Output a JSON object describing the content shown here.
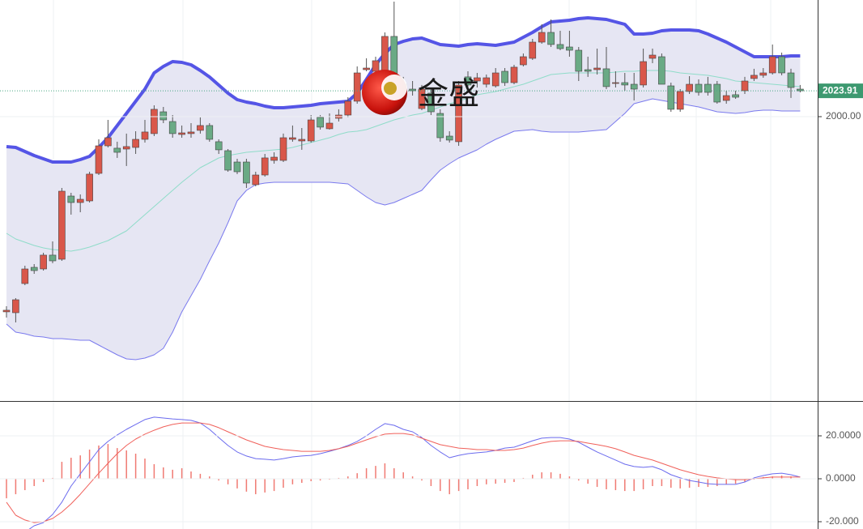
{
  "chart_data": [
    {
      "type": "candlestick",
      "ylim": [
        1736.75,
        2108
      ],
      "yticks": [
        {
          "value": 2000,
          "label": "2000.00"
        }
      ],
      "last_price": 2023.91,
      "watermark": "金盛",
      "up_color": "#d9574a",
      "down_color": "#6aaa85",
      "band_fill": "#e6e6f3",
      "ohlc": [
        [
          1819.3,
          1824.5,
          1814,
          1820.8
        ],
        [
          1818.5,
          1832,
          1809.5,
          1830.5
        ],
        [
          1845.5,
          1862,
          1844,
          1859
        ],
        [
          1860.5,
          1863.5,
          1854.5,
          1857.5
        ],
        [
          1859,
          1874,
          1857.5,
          1871.8
        ],
        [
          1871.8,
          1884.5,
          1864.3,
          1866.5
        ],
        [
          1868,
          1934,
          1866.5,
          1931
        ],
        [
          1926.5,
          1929.5,
          1909.3,
          1920.5
        ],
        [
          1920.5,
          1928,
          1911.5,
          1923.5
        ],
        [
          1922,
          1949,
          1920.5,
          1946.8
        ],
        [
          1947.5,
          1979,
          1946,
          1973
        ],
        [
          1973,
          1997,
          1971.5,
          1980.5
        ],
        [
          1970.8,
          1976.8,
          1961.8,
          1967
        ],
        [
          1970,
          1984.3,
          1954.3,
          1972.3
        ],
        [
          1971.5,
          1986.5,
          1965.5,
          1979
        ],
        [
          1979,
          1997,
          1976,
          1985.8
        ],
        [
          1984.3,
          2010.5,
          1982,
          2006.8
        ],
        [
          2004.5,
          2009,
          1994,
          1997
        ],
        [
          1995.5,
          2001.5,
          1980.5,
          1984.3
        ],
        [
          1983.5,
          1991.8,
          1980.5,
          1985
        ],
        [
          1984.3,
          1994,
          1980.5,
          1985.8
        ],
        [
          1987.3,
          1999.3,
          1984.3,
          1991.8
        ],
        [
          1991.8,
          1994,
          1976.8,
          1979
        ],
        [
          1976.8,
          1979,
          1965.5,
          1969.3
        ],
        [
          1968.5,
          1970,
          1949,
          1950.5
        ],
        [
          1958,
          1961,
          1946.8,
          1949
        ],
        [
          1958,
          1961,
          1934,
          1938.5
        ],
        [
          1937,
          1949,
          1935.5,
          1946
        ],
        [
          1946,
          1965.5,
          1944.5,
          1961.8
        ],
        [
          1959.5,
          1967,
          1956.5,
          1962.5
        ],
        [
          1959.5,
          1984.3,
          1958,
          1980.5
        ],
        [
          1979,
          1991.8,
          1976.8,
          1980.5
        ],
        [
          1977.5,
          1989.5,
          1969.3,
          1979
        ],
        [
          1977.5,
          2001.5,
          1976,
          1997
        ],
        [
          1999.3,
          2001.5,
          1988,
          1990.3
        ],
        [
          1988.8,
          2003,
          1988,
          1994
        ],
        [
          1998.5,
          2006.8,
          1995.5,
          2001.5
        ],
        [
          2001.5,
          2018,
          1999.3,
          2014.3
        ],
        [
          2014.3,
          2046.5,
          2012,
          2040.5
        ],
        [
          2043.5,
          2054,
          2042,
          2045
        ],
        [
          2042,
          2055.5,
          2040.5,
          2051.8
        ],
        [
          2042,
          2078,
          2039,
          2074.3
        ],
        [
          2074.3,
          2106.5,
          2021.8,
          2033
        ],
        [
          2030,
          2036.8,
          2019.5,
          2021.8
        ],
        [
          2025.5,
          2033,
          2019.5,
          2024
        ],
        [
          2007.5,
          2029.3,
          2006,
          2025.5
        ],
        [
          2021.8,
          2027,
          2001.5,
          2004.5
        ],
        [
          2003,
          2006.8,
          1976.8,
          1980.5
        ],
        [
          1982,
          1986.5,
          1976,
          1978.3
        ],
        [
          1976.8,
          2033,
          1973,
          2029.3
        ],
        [
          2036.8,
          2042,
          2027,
          2029.3
        ],
        [
          2033,
          2040.5,
          2027,
          2036
        ],
        [
          2030,
          2039,
          2027,
          2036
        ],
        [
          2028.5,
          2045,
          2027,
          2040.5
        ],
        [
          2042,
          2045,
          2028.5,
          2031.5
        ],
        [
          2031.5,
          2048,
          2030,
          2045.8
        ],
        [
          2048,
          2058.5,
          2046.5,
          2055.5
        ],
        [
          2054,
          2072,
          2052.5,
          2069
        ],
        [
          2069,
          2085.5,
          2067.5,
          2078
        ],
        [
          2078,
          2090,
          2064.5,
          2066.8
        ],
        [
          2066.8,
          2079.5,
          2061.5,
          2063
        ],
        [
          2064.5,
          2079.5,
          2055.5,
          2061.5
        ],
        [
          2061.5,
          2064.5,
          2033,
          2042
        ],
        [
          2043.5,
          2055.5,
          2036.8,
          2042
        ],
        [
          2043.5,
          2063,
          2039,
          2045
        ],
        [
          2044.3,
          2064.5,
          2025.5,
          2027.8
        ],
        [
          2030.8,
          2042,
          2027,
          2031.5
        ],
        [
          2031.5,
          2040.5,
          2024,
          2029.3
        ],
        [
          2030,
          2040.5,
          2015,
          2025.5
        ],
        [
          2029.3,
          2063,
          2027,
          2051
        ],
        [
          2054,
          2063,
          2049.5,
          2057
        ],
        [
          2055.5,
          2058.5,
          2030,
          2030
        ],
        [
          2028.5,
          2031.5,
          2004.5,
          2006.8
        ],
        [
          2006.8,
          2025.5,
          2004.5,
          2023.3
        ],
        [
          2023.3,
          2037.5,
          2021,
          2030
        ],
        [
          2030,
          2034.5,
          2019.5,
          2022.5
        ],
        [
          2030,
          2036.8,
          2019.5,
          2022.5
        ],
        [
          2030,
          2033,
          2012,
          2013.5
        ],
        [
          2015,
          2024,
          2012,
          2019.5
        ],
        [
          2020.3,
          2024,
          2016.5,
          2018
        ],
        [
          2024,
          2036.8,
          2021,
          2033
        ],
        [
          2035.3,
          2044.3,
          2033,
          2038.3
        ],
        [
          2038.3,
          2045,
          2036,
          2040.5
        ],
        [
          2040.5,
          2066.8,
          2039,
          2055.5
        ],
        [
          2055.5,
          2059.3,
          2038.3,
          2040.5
        ],
        [
          2040.5,
          2044.3,
          2017.3,
          2027
        ],
        [
          2025.5,
          2029.3,
          2022.5,
          2023.91
        ]
      ],
      "series": [
        {
          "color": "#5555e6",
          "width": 4,
          "values": [
            1972.25,
            1971.5,
            1967.75,
            1964,
            1961,
            1958,
            1958,
            1958,
            1960.25,
            1963.25,
            1971.5,
            1980.5,
            1991.75,
            2003,
            2014.25,
            2025.5,
            2040.5,
            2046.5,
            2051,
            2050.25,
            2048,
            2042.75,
            2036.75,
            2029.25,
            2021.75,
            2015.75,
            2013.5,
            2012,
            2009.75,
            2008.25,
            2008.25,
            2009,
            2009.75,
            2010.5,
            2012,
            2012.75,
            2013.5,
            2014.25,
            2021.75,
            2034.5,
            2048,
            2058.5,
            2066.75,
            2069.75,
            2072,
            2072.75,
            2069.75,
            2066.75,
            2066,
            2065.25,
            2066.75,
            2067.5,
            2066.75,
            2066,
            2067.5,
            2069,
            2073.5,
            2078,
            2083.25,
            2087.75,
            2088.5,
            2089.25,
            2090.75,
            2091.5,
            2090.75,
            2090,
            2087.75,
            2085.5,
            2076.5,
            2076.5,
            2077.25,
            2079.5,
            2080.25,
            2080.25,
            2080.25,
            2079.5,
            2076.5,
            2072.75,
            2069,
            2064.5,
            2060,
            2055.5,
            2055.5,
            2055.5,
            2055.5,
            2056.25,
            2056.25
          ]
        },
        {
          "color": "#8fdcc9",
          "width": 1,
          "values": [
            1892,
            1886.75,
            1883.75,
            1880.75,
            1878.5,
            1877,
            1876.25,
            1875.5,
            1877,
            1879.25,
            1882.25,
            1885.25,
            1889.75,
            1894.25,
            1901.75,
            1909.25,
            1916.75,
            1924.25,
            1931.75,
            1939.25,
            1946,
            1952.75,
            1957.25,
            1961.75,
            1964,
            1965.5,
            1967,
            1967.75,
            1968.5,
            1969.25,
            1970,
            1971.5,
            1973.75,
            1976,
            1978.25,
            1980.5,
            1983.5,
            1985.75,
            1986.5,
            1988,
            1991,
            1994,
            1997,
            1999.25,
            2001.5,
            2003,
            2006,
            2009,
            2012,
            2014.25,
            2017.25,
            2020.25,
            2021.75,
            2023.25,
            2025.5,
            2027.75,
            2030,
            2033,
            2036,
            2039,
            2039.75,
            2040.5,
            2040.5,
            2040.5,
            2040.5,
            2040.5,
            2041.25,
            2042,
            2042,
            2042.75,
            2042.75,
            2042.75,
            2042,
            2040.5,
            2039.75,
            2039,
            2038.25,
            2036.75,
            2035.25,
            2033,
            2032.25,
            2031.5,
            2030.75,
            2030,
            2029.25,
            2028.5,
            2027.75
          ]
        },
        {
          "color": "#7a7aee",
          "width": 1,
          "values": [
            1808,
            1800.5,
            1799,
            1796.75,
            1796,
            1794.5,
            1794.5,
            1793.75,
            1793,
            1793,
            1788.5,
            1784,
            1779.5,
            1775.75,
            1775,
            1776.5,
            1779.5,
            1785.5,
            1800.5,
            1819.25,
            1834.25,
            1849.25,
            1866.5,
            1883,
            1901.75,
            1922,
            1931.75,
            1937,
            1938.5,
            1939.25,
            1939.25,
            1939.25,
            1939.25,
            1939.25,
            1939.25,
            1939.25,
            1938.5,
            1937.75,
            1931.75,
            1925.75,
            1920.5,
            1918.25,
            1920.5,
            1924.25,
            1928,
            1931.75,
            1941.5,
            1950.5,
            1956.5,
            1961.75,
            1965.5,
            1969.25,
            1974.5,
            1979,
            1982.75,
            1986.5,
            1987.25,
            1988,
            1986.5,
            1985.75,
            1985.75,
            1985.75,
            1985.75,
            1986.5,
            1987.25,
            1988,
            1995.5,
            2003,
            2012,
            2014.25,
            2016.5,
            2015,
            2013.5,
            2012,
            2010.5,
            2009,
            2006.75,
            2004.5,
            2003.75,
            2003,
            2003.75,
            2005.25,
            2006,
            2006,
            2005.25,
            2005.25,
            2005.25
          ]
        }
      ]
    },
    {
      "type": "macd",
      "ylim": [
        -23.4,
        35.47
      ],
      "yticks": [
        {
          "value": 20,
          "label": "20.0000"
        },
        {
          "value": 0,
          "label": "0.0000"
        },
        {
          "value": -20,
          "label": "-20.000"
        }
      ],
      "histogram": {
        "color": "#f07a72",
        "values": [
          -9.1,
          -7.2,
          -5.3,
          -3.4,
          -1.5,
          0.4,
          7.9,
          9.8,
          10.9,
          13.6,
          15.5,
          16.2,
          14.3,
          13.2,
          11.7,
          9.4,
          6.8,
          5.3,
          4.2,
          4.9,
          3.4,
          2.3,
          1.1,
          -0.8,
          -2.6,
          -4.5,
          -6.0,
          -7.2,
          -6.4,
          -5.7,
          -4.2,
          -2.6,
          -1.9,
          -1.1,
          -0.8,
          -0.4,
          0.4,
          1.1,
          2.6,
          4.9,
          6.0,
          7.2,
          4.9,
          3.0,
          1.1,
          -0.8,
          -3.4,
          -5.7,
          -7.2,
          -5.7,
          -4.9,
          -3.4,
          -2.6,
          -2.3,
          -1.9,
          -1.5,
          0.4,
          1.9,
          3.0,
          3.0,
          2.3,
          1.1,
          -0.8,
          -2.3,
          -3.8,
          -4.9,
          -5.3,
          -5.7,
          -5.7,
          -4.9,
          -3.4,
          -3.4,
          -4.2,
          -4.5,
          -4.2,
          -3.8,
          -3.8,
          -3.4,
          -2.6,
          -2.3,
          -1.5,
          -0.4,
          0.8,
          1.1,
          1.5,
          1.1,
          0
        ]
      },
      "series": [
        {
          "color": "#6b6bee",
          "width": 1,
          "values": [
            -31.7,
            -27.9,
            -24.9,
            -21.9,
            -20.4,
            -16.6,
            -10.9,
            -3.4,
            2.3,
            7.9,
            13.6,
            17.4,
            20.4,
            23.0,
            25.3,
            27.6,
            28.7,
            28.3,
            27.9,
            27.6,
            27.2,
            26.0,
            23.0,
            19.2,
            15.5,
            12.5,
            10.6,
            9.4,
            9.1,
            8.7,
            9.4,
            10.2,
            10.6,
            10.9,
            11.7,
            12.8,
            14.0,
            15.5,
            17.4,
            20.0,
            23.0,
            25.7,
            24.9,
            23.0,
            21.9,
            19.2,
            15.5,
            12.5,
            9.8,
            10.9,
            11.7,
            12.1,
            12.5,
            13.2,
            14.3,
            14.7,
            16.2,
            17.7,
            18.9,
            19.2,
            19.2,
            18.5,
            17.0,
            14.7,
            12.5,
            10.6,
            8.7,
            6.8,
            5.7,
            5.3,
            5.7,
            4.2,
            1.9,
            0.4,
            -0.8,
            -1.5,
            -2.3,
            -2.6,
            -2.6,
            -2.6,
            -1.5,
            0.4,
            1.5,
            2.3,
            2.6,
            1.9,
            0.8
          ]
        },
        {
          "color": "#f0605a",
          "width": 1,
          "values": [
            -10.9,
            -17.0,
            -19.2,
            -20.4,
            -20.0,
            -18.5,
            -15.5,
            -11.7,
            -7.2,
            -2.3,
            2.6,
            7.2,
            11.7,
            15.5,
            18.5,
            20.8,
            22.6,
            24.2,
            25.3,
            26.0,
            26.0,
            26.0,
            25.3,
            23.8,
            21.9,
            20.0,
            18.1,
            16.6,
            15.1,
            14.3,
            13.6,
            13.2,
            12.8,
            12.8,
            12.8,
            13.2,
            14.0,
            15.1,
            16.6,
            18.1,
            19.6,
            20.8,
            21.1,
            21.1,
            20.4,
            18.9,
            17.4,
            15.9,
            15.1,
            14.3,
            14.0,
            13.6,
            13.6,
            13.2,
            13.2,
            13.6,
            14.3,
            15.5,
            16.6,
            17.4,
            17.7,
            17.7,
            17.4,
            16.6,
            15.9,
            15.1,
            14.0,
            12.5,
            10.9,
            9.8,
            8.7,
            7.2,
            5.7,
            4.2,
            3.0,
            1.9,
            1.1,
            0.4,
            0,
            -0.4,
            -0.4,
            0,
            0.4,
            0.8,
            0.8,
            0.8,
            0.8
          ]
        }
      ]
    }
  ]
}
